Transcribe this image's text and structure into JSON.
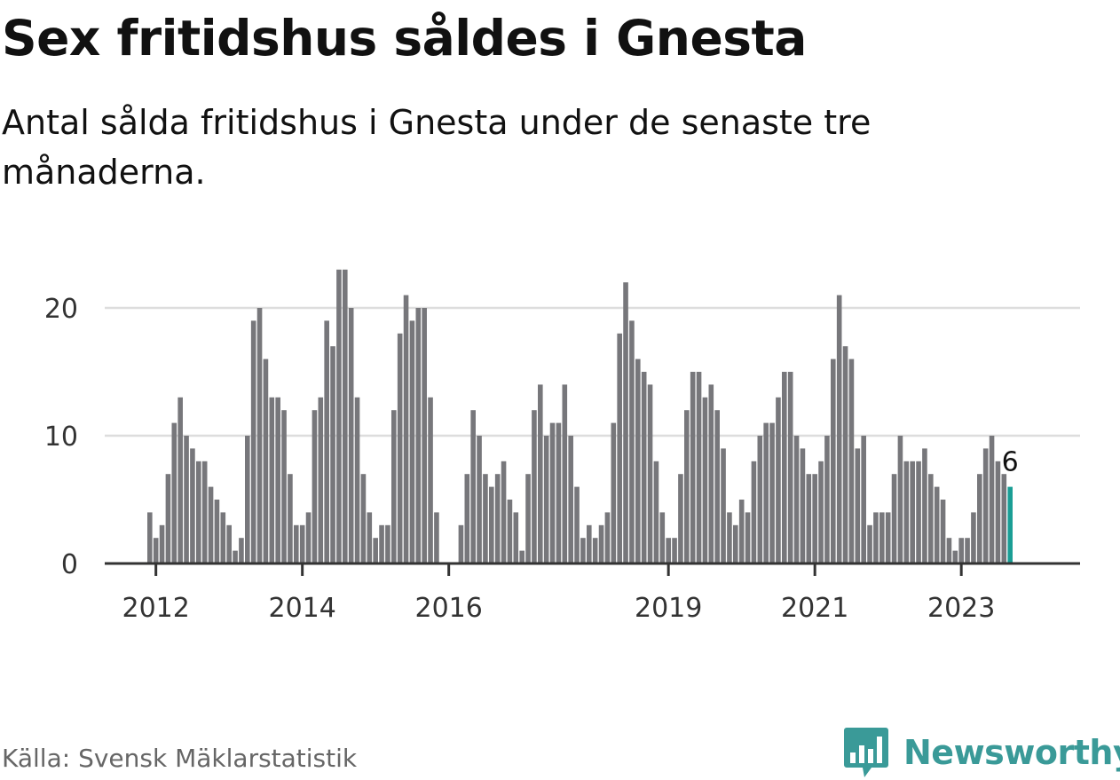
{
  "title": "Sex fritidshus såldes i Gnesta",
  "subtitle": "Antal sålda fritidshus i Gnesta under de senaste tre månaderna.",
  "source": "Källa: Svensk Mäklarstatistik",
  "brand": "Newsworthy",
  "colors": {
    "bar": "#77777b",
    "highlight": "#1a9e95",
    "grid": "#dddddd",
    "axis": "#333333",
    "brand": "#3a9a98"
  },
  "chart_data": {
    "type": "bar",
    "title": "Sex fritidshus såldes i Gnesta",
    "xlabel": "",
    "ylabel": "",
    "ylim": [
      0,
      24
    ],
    "yticks": [
      0,
      10,
      20
    ],
    "xticks": [
      {
        "label": "2012",
        "index": 1
      },
      {
        "label": "2014",
        "index": 25
      },
      {
        "label": "2016",
        "index": 49
      },
      {
        "label": "2019",
        "index": 85
      },
      {
        "label": "2021",
        "index": 109
      },
      {
        "label": "2023",
        "index": 133
      }
    ],
    "grid": true,
    "values": [
      4,
      2,
      3,
      7,
      11,
      13,
      10,
      9,
      8,
      8,
      6,
      5,
      4,
      3,
      1,
      2,
      10,
      19,
      20,
      16,
      13,
      13,
      12,
      7,
      3,
      3,
      4,
      12,
      13,
      19,
      17,
      23,
      23,
      20,
      13,
      7,
      4,
      2,
      3,
      3,
      12,
      18,
      21,
      19,
      20,
      20,
      13,
      4,
      0,
      0,
      0,
      3,
      7,
      12,
      10,
      7,
      6,
      7,
      8,
      5,
      4,
      1,
      7,
      12,
      14,
      10,
      11,
      11,
      14,
      10,
      6,
      2,
      3,
      2,
      3,
      4,
      11,
      18,
      22,
      19,
      16,
      15,
      14,
      8,
      4,
      2,
      2,
      7,
      12,
      15,
      15,
      13,
      14,
      12,
      9,
      4,
      3,
      5,
      4,
      8,
      10,
      11,
      11,
      13,
      15,
      15,
      10,
      9,
      7,
      7,
      8,
      10,
      16,
      21,
      17,
      16,
      9,
      10,
      3,
      4,
      4,
      4,
      7,
      10,
      8,
      8,
      8,
      9,
      7,
      6,
      5,
      2,
      1,
      2,
      2,
      4,
      7,
      9,
      10,
      8,
      7,
      6
    ],
    "highlight_index": 141,
    "last_label": "6"
  }
}
